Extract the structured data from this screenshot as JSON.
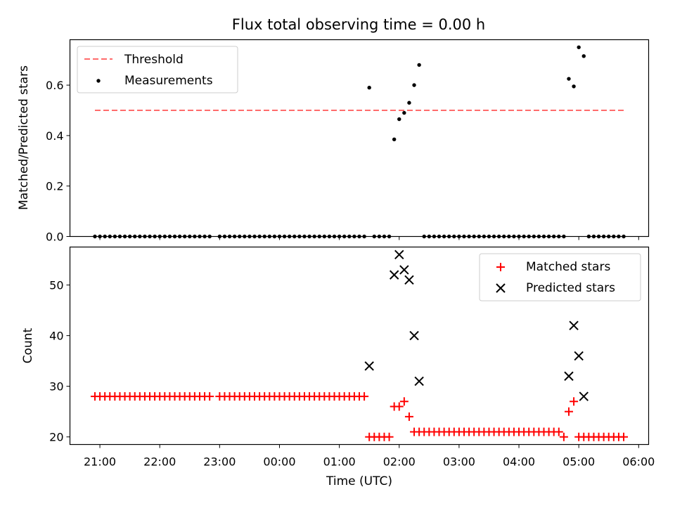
{
  "figure": {
    "title": "Flux total observing time = 0.00 h"
  },
  "chart_data": [
    {
      "type": "scatter",
      "ylabel": "Matched/Predicted stars",
      "xlabel": "",
      "xlim": [
        "20:30",
        "06:10"
      ],
      "ylim": [
        0,
        0.78
      ],
      "yticks": [
        0.0,
        0.2,
        0.4,
        0.6
      ],
      "ytick_labels": [
        "0.0",
        "0.2",
        "0.4",
        "0.6"
      ],
      "grid": false,
      "legend": "top-left",
      "threshold": {
        "name": "Threshold",
        "value": 0.5,
        "x_range": [
          "20:55",
          "05:45"
        ],
        "color": "#ff6b6b",
        "style": "dashed"
      },
      "series": [
        {
          "name": "Measurements",
          "color": "#000000",
          "marker": "dot",
          "points": [
            [
              "20:55",
              0
            ],
            [
              "21:00",
              0
            ],
            [
              "21:05",
              0
            ],
            [
              "21:10",
              0
            ],
            [
              "21:15",
              0
            ],
            [
              "21:20",
              0
            ],
            [
              "21:25",
              0
            ],
            [
              "21:30",
              0
            ],
            [
              "21:35",
              0
            ],
            [
              "21:40",
              0
            ],
            [
              "21:45",
              0
            ],
            [
              "21:50",
              0
            ],
            [
              "21:55",
              0
            ],
            [
              "22:00",
              0
            ],
            [
              "22:05",
              0
            ],
            [
              "22:10",
              0
            ],
            [
              "22:15",
              0
            ],
            [
              "22:20",
              0
            ],
            [
              "22:25",
              0
            ],
            [
              "22:30",
              0
            ],
            [
              "22:35",
              0
            ],
            [
              "22:40",
              0
            ],
            [
              "22:45",
              0
            ],
            [
              "22:50",
              0
            ],
            [
              "23:00",
              0
            ],
            [
              "23:05",
              0
            ],
            [
              "23:10",
              0
            ],
            [
              "23:15",
              0
            ],
            [
              "23:20",
              0
            ],
            [
              "23:25",
              0
            ],
            [
              "23:30",
              0
            ],
            [
              "23:35",
              0
            ],
            [
              "23:40",
              0
            ],
            [
              "23:45",
              0
            ],
            [
              "23:50",
              0
            ],
            [
              "23:55",
              0
            ],
            [
              "00:00",
              0
            ],
            [
              "00:05",
              0
            ],
            [
              "00:10",
              0
            ],
            [
              "00:15",
              0
            ],
            [
              "00:20",
              0
            ],
            [
              "00:25",
              0
            ],
            [
              "00:30",
              0
            ],
            [
              "00:35",
              0
            ],
            [
              "00:40",
              0
            ],
            [
              "00:45",
              0
            ],
            [
              "00:50",
              0
            ],
            [
              "00:55",
              0
            ],
            [
              "01:00",
              0
            ],
            [
              "01:05",
              0
            ],
            [
              "01:10",
              0
            ],
            [
              "01:15",
              0
            ],
            [
              "01:20",
              0
            ],
            [
              "01:25",
              0
            ],
            [
              "01:30",
              0.59
            ],
            [
              "01:35",
              0
            ],
            [
              "01:40",
              0
            ],
            [
              "01:45",
              0
            ],
            [
              "01:50",
              0
            ],
            [
              "01:55",
              0.385
            ],
            [
              "02:00",
              0.465
            ],
            [
              "02:05",
              0.49
            ],
            [
              "02:10",
              0.53
            ],
            [
              "02:15",
              0.6
            ],
            [
              "02:20",
              0.68
            ],
            [
              "02:25",
              0
            ],
            [
              "02:30",
              0
            ],
            [
              "02:35",
              0
            ],
            [
              "02:40",
              0
            ],
            [
              "02:45",
              0
            ],
            [
              "02:50",
              0
            ],
            [
              "02:55",
              0
            ],
            [
              "03:00",
              0
            ],
            [
              "03:05",
              0
            ],
            [
              "03:10",
              0
            ],
            [
              "03:15",
              0
            ],
            [
              "03:20",
              0
            ],
            [
              "03:25",
              0
            ],
            [
              "03:30",
              0
            ],
            [
              "03:35",
              0
            ],
            [
              "03:40",
              0
            ],
            [
              "03:45",
              0
            ],
            [
              "03:50",
              0
            ],
            [
              "03:55",
              0
            ],
            [
              "04:00",
              0
            ],
            [
              "04:05",
              0
            ],
            [
              "04:10",
              0
            ],
            [
              "04:15",
              0
            ],
            [
              "04:20",
              0
            ],
            [
              "04:25",
              0
            ],
            [
              "04:30",
              0
            ],
            [
              "04:35",
              0
            ],
            [
              "04:40",
              0
            ],
            [
              "04:45",
              0
            ],
            [
              "04:50",
              0.625
            ],
            [
              "04:55",
              0.595
            ],
            [
              "05:00",
              0.75
            ],
            [
              "05:05",
              0.715
            ],
            [
              "05:10",
              0
            ],
            [
              "05:15",
              0
            ],
            [
              "05:20",
              0
            ],
            [
              "05:25",
              0
            ],
            [
              "05:30",
              0
            ],
            [
              "05:35",
              0
            ],
            [
              "05:40",
              0
            ],
            [
              "05:45",
              0
            ]
          ]
        }
      ]
    },
    {
      "type": "scatter",
      "ylabel": "Count",
      "xlabel": "Time (UTC)",
      "xlim": [
        "20:30",
        "06:10"
      ],
      "xticks": [
        "21:00",
        "22:00",
        "23:00",
        "00:00",
        "01:00",
        "02:00",
        "03:00",
        "04:00",
        "05:00",
        "06:00"
      ],
      "ylim": [
        18.5,
        57.5
      ],
      "yticks": [
        20,
        30,
        40,
        50
      ],
      "ytick_labels": [
        "20",
        "30",
        "40",
        "50"
      ],
      "grid": false,
      "legend": "top-right",
      "series": [
        {
          "name": "Matched stars",
          "color": "#ff0000",
          "marker": "plus",
          "points": [
            [
              "20:55",
              28
            ],
            [
              "21:00",
              28
            ],
            [
              "21:05",
              28
            ],
            [
              "21:10",
              28
            ],
            [
              "21:15",
              28
            ],
            [
              "21:20",
              28
            ],
            [
              "21:25",
              28
            ],
            [
              "21:30",
              28
            ],
            [
              "21:35",
              28
            ],
            [
              "21:40",
              28
            ],
            [
              "21:45",
              28
            ],
            [
              "21:50",
              28
            ],
            [
              "21:55",
              28
            ],
            [
              "22:00",
              28
            ],
            [
              "22:05",
              28
            ],
            [
              "22:10",
              28
            ],
            [
              "22:15",
              28
            ],
            [
              "22:20",
              28
            ],
            [
              "22:25",
              28
            ],
            [
              "22:30",
              28
            ],
            [
              "22:35",
              28
            ],
            [
              "22:40",
              28
            ],
            [
              "22:45",
              28
            ],
            [
              "22:50",
              28
            ],
            [
              "23:00",
              28
            ],
            [
              "23:05",
              28
            ],
            [
              "23:10",
              28
            ],
            [
              "23:15",
              28
            ],
            [
              "23:20",
              28
            ],
            [
              "23:25",
              28
            ],
            [
              "23:30",
              28
            ],
            [
              "23:35",
              28
            ],
            [
              "23:40",
              28
            ],
            [
              "23:45",
              28
            ],
            [
              "23:50",
              28
            ],
            [
              "23:55",
              28
            ],
            [
              "00:00",
              28
            ],
            [
              "00:05",
              28
            ],
            [
              "00:10",
              28
            ],
            [
              "00:15",
              28
            ],
            [
              "00:20",
              28
            ],
            [
              "00:25",
              28
            ],
            [
              "00:30",
              28
            ],
            [
              "00:35",
              28
            ],
            [
              "00:40",
              28
            ],
            [
              "00:45",
              28
            ],
            [
              "00:50",
              28
            ],
            [
              "00:55",
              28
            ],
            [
              "01:00",
              28
            ],
            [
              "01:05",
              28
            ],
            [
              "01:10",
              28
            ],
            [
              "01:15",
              28
            ],
            [
              "01:20",
              28
            ],
            [
              "01:25",
              28
            ],
            [
              "01:30",
              20
            ],
            [
              "01:35",
              20
            ],
            [
              "01:40",
              20
            ],
            [
              "01:45",
              20
            ],
            [
              "01:50",
              20
            ],
            [
              "01:55",
              26
            ],
            [
              "02:00",
              26
            ],
            [
              "02:05",
              27
            ],
            [
              "02:10",
              24
            ],
            [
              "02:15",
              21
            ],
            [
              "02:20",
              21
            ],
            [
              "02:25",
              21
            ],
            [
              "02:30",
              21
            ],
            [
              "02:35",
              21
            ],
            [
              "02:40",
              21
            ],
            [
              "02:45",
              21
            ],
            [
              "02:50",
              21
            ],
            [
              "02:55",
              21
            ],
            [
              "03:00",
              21
            ],
            [
              "03:05",
              21
            ],
            [
              "03:10",
              21
            ],
            [
              "03:15",
              21
            ],
            [
              "03:20",
              21
            ],
            [
              "03:25",
              21
            ],
            [
              "03:30",
              21
            ],
            [
              "03:35",
              21
            ],
            [
              "03:40",
              21
            ],
            [
              "03:45",
              21
            ],
            [
              "03:50",
              21
            ],
            [
              "03:55",
              21
            ],
            [
              "04:00",
              21
            ],
            [
              "04:05",
              21
            ],
            [
              "04:10",
              21
            ],
            [
              "04:15",
              21
            ],
            [
              "04:20",
              21
            ],
            [
              "04:25",
              21
            ],
            [
              "04:30",
              21
            ],
            [
              "04:35",
              21
            ],
            [
              "04:40",
              21
            ],
            [
              "04:45",
              20
            ],
            [
              "04:50",
              25
            ],
            [
              "04:55",
              27
            ],
            [
              "05:00",
              20
            ],
            [
              "05:05",
              20
            ],
            [
              "05:10",
              20
            ],
            [
              "05:15",
              20
            ],
            [
              "05:20",
              20
            ],
            [
              "05:25",
              20
            ],
            [
              "05:30",
              20
            ],
            [
              "05:35",
              20
            ],
            [
              "05:40",
              20
            ],
            [
              "05:45",
              20
            ]
          ]
        },
        {
          "name": "Predicted stars",
          "color": "#000000",
          "marker": "x",
          "points": [
            [
              "01:30",
              34
            ],
            [
              "01:55",
              52
            ],
            [
              "02:00",
              56
            ],
            [
              "02:05",
              53
            ],
            [
              "02:10",
              51
            ],
            [
              "02:15",
              40
            ],
            [
              "02:20",
              31
            ],
            [
              "04:50",
              32
            ],
            [
              "04:55",
              42
            ],
            [
              "05:00",
              36
            ],
            [
              "05:05",
              28
            ]
          ]
        }
      ]
    }
  ]
}
